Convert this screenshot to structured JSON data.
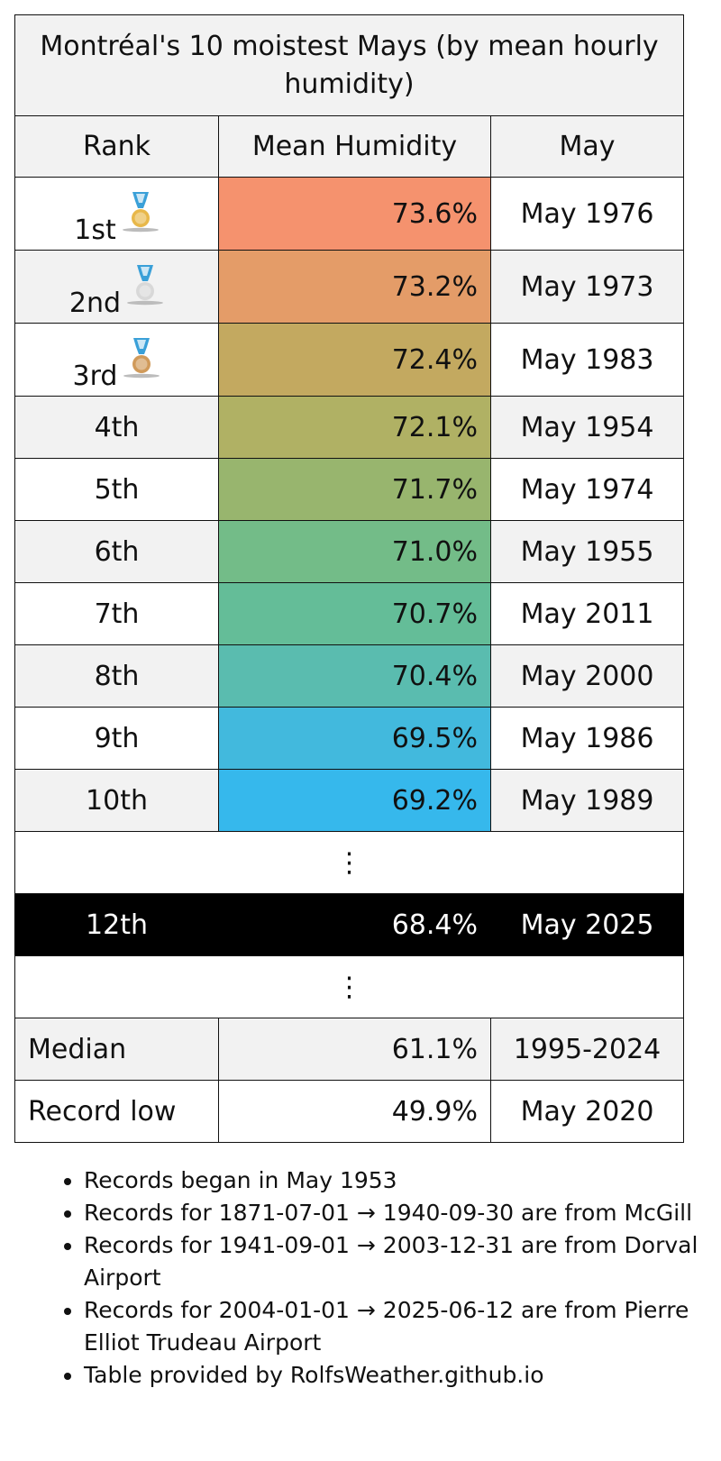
{
  "title": "Montréal's 10 moistest Mays (by mean hourly humidity)",
  "headers": {
    "rank": "Rank",
    "humidity": "Mean Humidity",
    "may": "May"
  },
  "rows": [
    {
      "rank": "1st",
      "humidity": "73.6%",
      "may": "May 1976",
      "medal": "gold-medal-icon",
      "color": "#f5926e"
    },
    {
      "rank": "2nd",
      "humidity": "73.2%",
      "may": "May 1973",
      "medal": "silver-medal-icon",
      "color": "#e49c68"
    },
    {
      "rank": "3rd",
      "humidity": "72.4%",
      "may": "May 1983",
      "medal": "bronze-medal-icon",
      "color": "#c3a960"
    },
    {
      "rank": "4th",
      "humidity": "72.1%",
      "may": "May 1954",
      "color": "#b0b164"
    },
    {
      "rank": "5th",
      "humidity": "71.7%",
      "may": "May 1974",
      "color": "#98b56e"
    },
    {
      "rank": "6th",
      "humidity": "71.0%",
      "may": "May 1955",
      "color": "#73bc88"
    },
    {
      "rank": "7th",
      "humidity": "70.7%",
      "may": "May 2011",
      "color": "#64bd98"
    },
    {
      "rank": "8th",
      "humidity": "70.4%",
      "may": "May 2000",
      "color": "#5abcaf"
    },
    {
      "rank": "9th",
      "humidity": "69.5%",
      "may": "May 1986",
      "color": "#42b9dd"
    },
    {
      "rank": "10th",
      "humidity": "69.2%",
      "may": "May 1989",
      "color": "#36b8ec"
    }
  ],
  "ellipsis": "⋮",
  "current": {
    "rank": "12th",
    "humidity": "68.4%",
    "may": "May 2025"
  },
  "median": {
    "label": "Median",
    "humidity": "61.1%",
    "period": "1995-2024"
  },
  "record_low": {
    "label": "Record low",
    "humidity": "49.9%",
    "may": "May 2020"
  },
  "notes": [
    "Records began in May 1953",
    "Records for 1871-07-01 → 1940-09-30 are from McGill",
    "Records for 1941-09-01 → 2003-12-31 are from Dorval Airport",
    "Records for 2004-01-01 → 2025-06-12 are from Pierre Elliot Trudeau Airport",
    "Table provided by RolfsWeather.github.io"
  ],
  "medal_colors": {
    "gold": "#e8b84a",
    "silver": "#d8d8d8",
    "bronze": "#d09a5a",
    "ribbon": "#3aa0d8"
  }
}
